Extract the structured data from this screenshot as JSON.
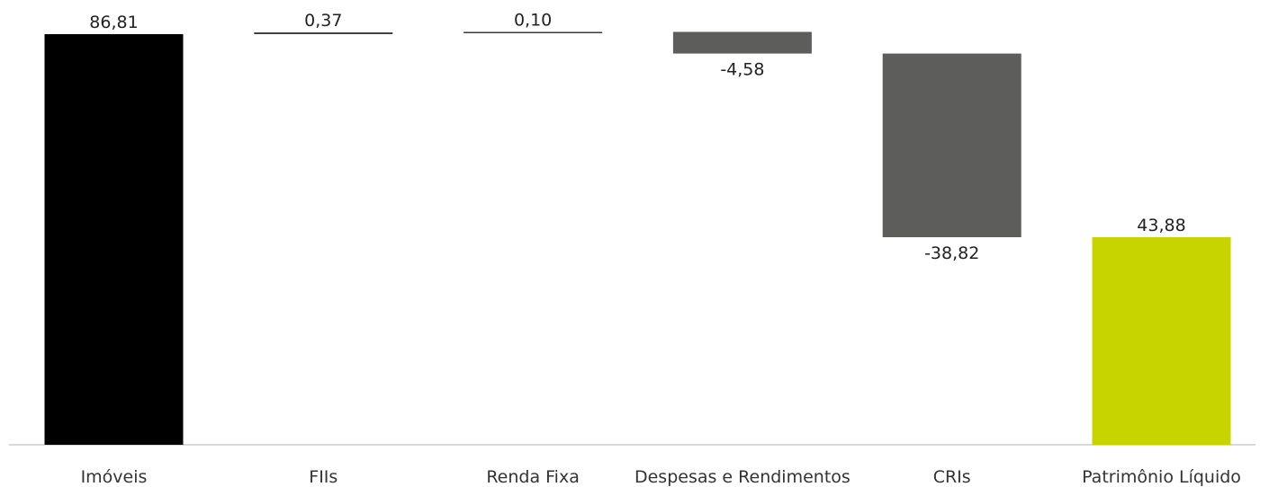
{
  "chart_data": {
    "type": "bar",
    "subtype": "waterfall",
    "title": "",
    "xlabel": "",
    "ylabel": "",
    "ylim": [
      0,
      86.81
    ],
    "grid": false,
    "legend": "none",
    "categories": [
      "Imóveis",
      "FIIs",
      "Renda Fixa",
      "Despesas e Rendimentos",
      "CRIs",
      "Patrimônio Líquido"
    ],
    "values": [
      86.81,
      0.37,
      0.1,
      -4.58,
      -38.82,
      43.88
    ],
    "value_labels": [
      "86,81",
      "0,37",
      "0,10",
      "-4,58",
      "-38,82",
      "43,88"
    ],
    "bar_kinds": [
      "total",
      "delta",
      "delta",
      "delta",
      "delta",
      "total"
    ],
    "colors": {
      "total_start": "#000000",
      "positive": "#3a3a3a",
      "negative": "#5d5d5b",
      "total_end": "#c8d400",
      "baseline": "#d9d9d9"
    }
  }
}
